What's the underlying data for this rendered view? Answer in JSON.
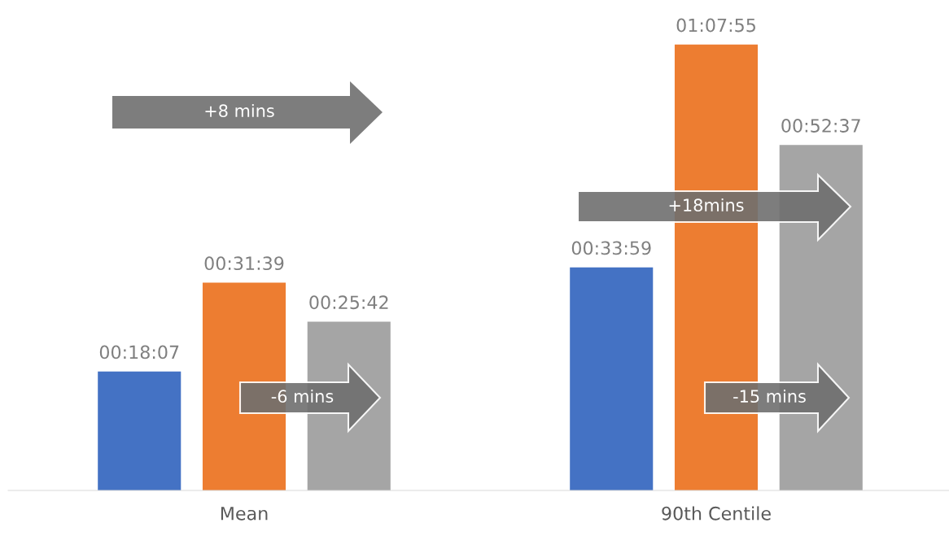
{
  "chart_data": {
    "type": "bar",
    "categories": [
      "Mean",
      "90th Centile"
    ],
    "series": [
      {
        "color": "#4472c4",
        "values": [
          1087,
          2039
        ],
        "value_labels": [
          "00:18:07",
          "00:33:59"
        ]
      },
      {
        "color": "#ed7d31",
        "values": [
          1899,
          4075
        ],
        "value_labels": [
          "00:31:39",
          "01:07:55"
        ]
      },
      {
        "color": "#a5a5a5",
        "values": [
          1542,
          3157
        ],
        "value_labels": [
          "00:25:42",
          "00:52:37"
        ]
      }
    ],
    "annotations": [
      "+8 mins",
      "+18mins",
      "-6 mins",
      "-15 mins"
    ]
  }
}
